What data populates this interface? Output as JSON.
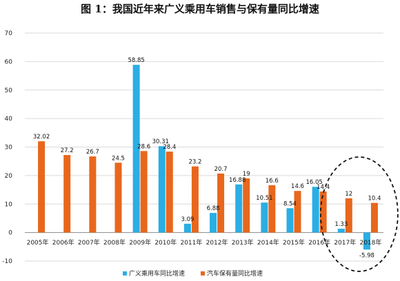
{
  "chart_data": {
    "type": "bar",
    "title": "图 1：我国近年来广义乘用车销售与保有量同比增速",
    "categories": [
      "2005年",
      "2006年",
      "2007年",
      "2008年",
      "2009年",
      "2010年",
      "2011年",
      "2012年",
      "2013年",
      "2014年",
      "2015年",
      "2016年",
      "2017年",
      "2018年"
    ],
    "series": [
      {
        "name": "广义乘用车同比增速",
        "color": "#2aaee4",
        "values": [
          null,
          null,
          null,
          null,
          58.85,
          30.31,
          3.09,
          6.88,
          16.88,
          10.51,
          8.54,
          16.05,
          1.33,
          -5.98
        ],
        "labels": [
          "",
          "",
          "",
          "",
          "58.85",
          "30.31",
          "3.09",
          "6.88",
          "16.88",
          "10.51",
          "8.54",
          "16.05",
          "1.33",
          "-5.98"
        ]
      },
      {
        "name": "汽车保有量同比增速",
        "color": "#e8671c",
        "values": [
          32.02,
          27.2,
          26.7,
          24.5,
          28.6,
          28.4,
          23.2,
          20.7,
          19,
          16.6,
          14.6,
          14.4,
          12,
          10.4
        ],
        "labels": [
          "32.02",
          "27.2",
          "26.7",
          "24.5",
          "28.6",
          "28.4",
          "23.2",
          "20.7",
          "19",
          "16.6",
          "14.6",
          "14.4",
          "12",
          "10.4"
        ]
      }
    ],
    "ylim": [
      -10,
      70
    ],
    "yticks": [
      "-10",
      "0",
      "10",
      "20",
      "30",
      "40",
      "50",
      "60",
      "70"
    ],
    "grid": true,
    "legend": "bottom",
    "annotation": "dashed ellipse highlighting 2017年–2018年"
  }
}
